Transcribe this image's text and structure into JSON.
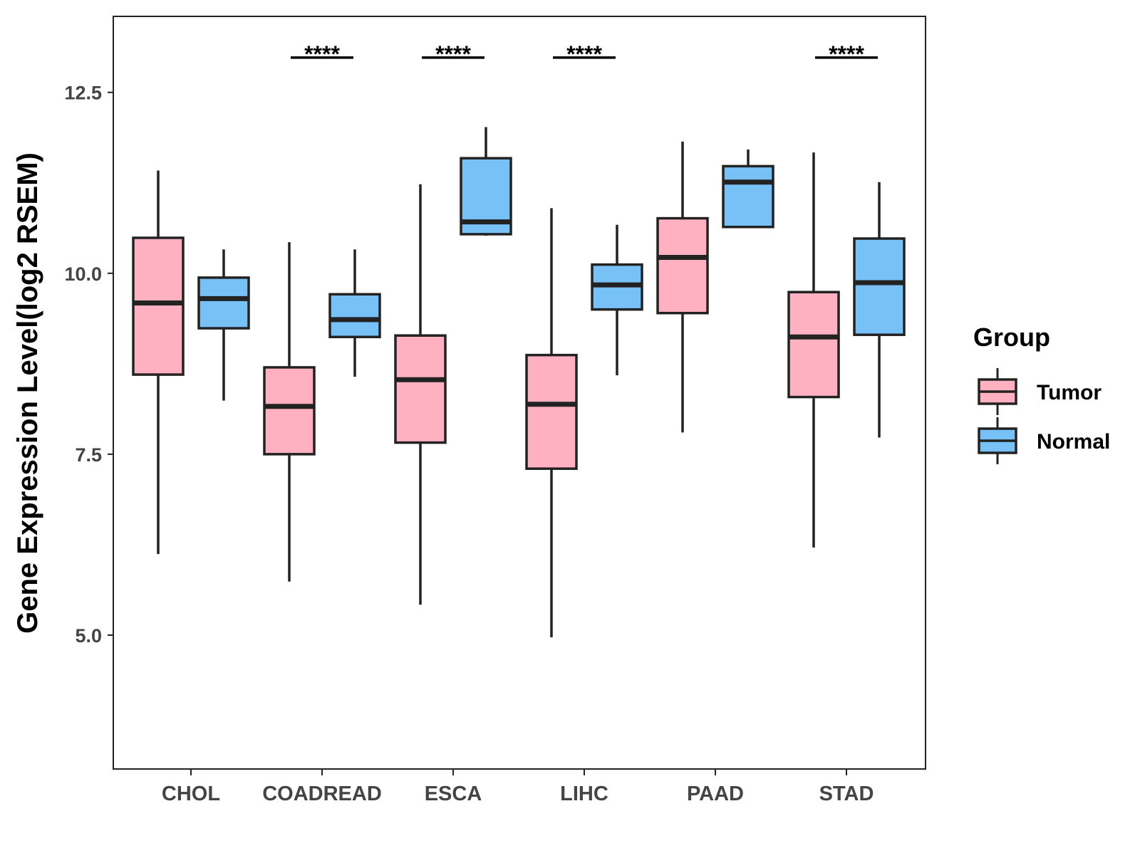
{
  "chart_data": {
    "type": "boxplot",
    "title": "",
    "xlabel": "",
    "ylabel": "Gene Expression Level(log2 RSEM)",
    "ylim": [
      3.15,
      13.55
    ],
    "yticks": [
      5.0,
      7.5,
      10.0,
      12.5
    ],
    "ytick_labels": [
      "5.0",
      "7.5",
      "10.0",
      "12.5"
    ],
    "categories": [
      "CHOL",
      "COADREAD",
      "ESCA",
      "LIHC",
      "PAAD",
      "STAD"
    ],
    "grid": false,
    "legend": {
      "title": "Group",
      "position": "right",
      "entries": [
        {
          "name": "Tumor",
          "color": "#FFB0C1"
        },
        {
          "name": "Normal",
          "color": "#78C1F7"
        }
      ]
    },
    "series": [
      {
        "name": "Tumor",
        "color": "#FFB0C1",
        "boxes": [
          {
            "whisker_low": 6.12,
            "q1": 8.6,
            "median": 9.59,
            "q3": 10.49,
            "whisker_high": 11.42
          },
          {
            "whisker_low": 5.74,
            "q1": 7.5,
            "median": 8.16,
            "q3": 8.7,
            "whisker_high": 10.43
          },
          {
            "whisker_low": 5.42,
            "q1": 7.66,
            "median": 8.53,
            "q3": 9.14,
            "whisker_high": 11.23
          },
          {
            "whisker_low": 4.97,
            "q1": 7.3,
            "median": 8.19,
            "q3": 8.87,
            "whisker_high": 10.9
          },
          {
            "whisker_low": 7.8,
            "q1": 9.45,
            "median": 10.22,
            "q3": 10.76,
            "whisker_high": 11.82
          },
          {
            "whisker_low": 6.21,
            "q1": 8.29,
            "median": 9.12,
            "q3": 9.74,
            "whisker_high": 11.67
          }
        ]
      },
      {
        "name": "Normal",
        "color": "#78C1F7",
        "boxes": [
          {
            "whisker_low": 8.24,
            "q1": 9.24,
            "median": 9.65,
            "q3": 9.94,
            "whisker_high": 10.33
          },
          {
            "whisker_low": 8.57,
            "q1": 9.12,
            "median": 9.36,
            "q3": 9.71,
            "whisker_high": 10.33
          },
          {
            "whisker_low": 10.52,
            "q1": 10.54,
            "median": 10.71,
            "q3": 11.59,
            "whisker_high": 12.02
          },
          {
            "whisker_low": 8.59,
            "q1": 9.5,
            "median": 9.84,
            "q3": 10.12,
            "whisker_high": 10.67
          },
          {
            "whisker_low": 10.64,
            "q1": 10.64,
            "median": 11.26,
            "q3": 11.48,
            "whisker_high": 11.71
          },
          {
            "whisker_low": 7.73,
            "q1": 9.15,
            "median": 9.87,
            "q3": 10.48,
            "whisker_high": 11.26
          }
        ]
      }
    ],
    "annotations": [
      {
        "category": "COADREAD",
        "text": "****",
        "y": 12.98
      },
      {
        "category": "ESCA",
        "text": "****",
        "y": 12.98
      },
      {
        "category": "LIHC",
        "text": "****",
        "y": 12.98
      },
      {
        "category": "STAD",
        "text": "****",
        "y": 12.98
      }
    ]
  }
}
